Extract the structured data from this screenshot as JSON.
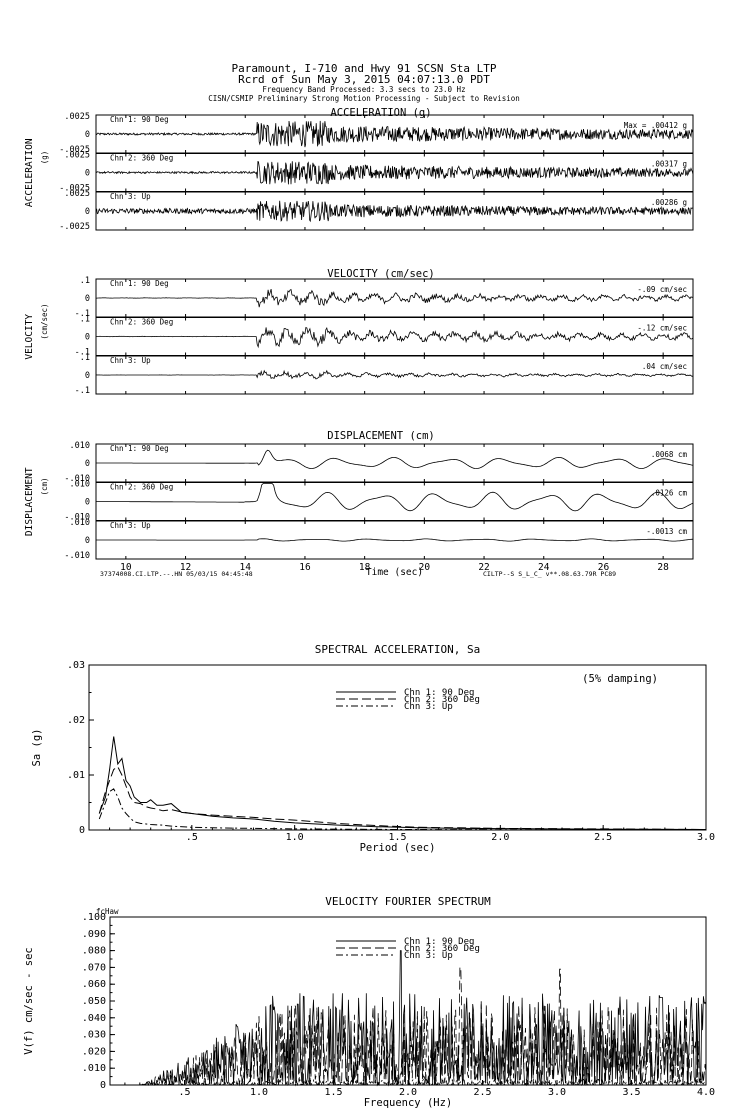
{
  "header": {
    "line1": "Paramount, I-710 and Hwy 91    SCSN Sta LTP",
    "line2": "Rcrd of Sun May  3, 2015 04:07:13.0 PDT",
    "line3": "Frequency Band Processed: 3.3 secs to 23.0 Hz",
    "line4": "CISN/CSMIP Preliminary Strong Motion Processing - Subject to Revision"
  },
  "chart_data": [
    {
      "type": "line",
      "id": "time-histories",
      "xlabel": "Time (sec)",
      "xlim": [
        9,
        29
      ],
      "xticks": [
        "10",
        "12",
        "14",
        "16",
        "18",
        "20",
        "22",
        "24",
        "26",
        "28"
      ],
      "footer_left": "37374008.CI.LTP.--.HN 05/03/15 04:45:48",
      "footer_right": "CILTP--S  S_L_C_  v**.08.63.79R PC89",
      "groups": [
        {
          "title": "ACCELERATION (g)",
          "side_label": "ACCELERATION",
          "unit_label": "(g)",
          "ylim": [
            -0.0025,
            0.0025
          ],
          "yticks": [
            ".0025",
            "0",
            "-.0025"
          ],
          "channels": [
            {
              "name": "Chn 1: 90 Deg",
              "max": "Max =   .00412   g",
              "amp": 0.78
            },
            {
              "name": "Chn 2: 360 Deg",
              "max": ".00317   g",
              "amp": 0.7
            },
            {
              "name": "Chn 3: Up",
              "max": ".00286   g",
              "amp": 0.6
            }
          ]
        },
        {
          "title": "VELOCITY (cm/sec)",
          "side_label": "VELOCITY",
          "unit_label": "(cm/sec)",
          "ylim": [
            -0.1,
            0.1
          ],
          "yticks": [
            ".1",
            "0",
            "-.1"
          ],
          "channels": [
            {
              "name": "Chn 1: 90 Deg",
              "max": "-.09   cm/sec",
              "amp": 0.55
            },
            {
              "name": "Chn 2: 360 Deg",
              "max": "-.12   cm/sec",
              "amp": 0.65
            },
            {
              "name": "Chn 3: Up",
              "max": ".04   cm/sec",
              "amp": 0.25
            }
          ]
        },
        {
          "title": "DISPLACEMENT (cm)",
          "side_label": "DISPLACEMENT",
          "unit_label": "(cm)",
          "ylim": [
            -0.01,
            0.01
          ],
          "yticks": [
            ".010",
            "0",
            "-.010"
          ],
          "channels": [
            {
              "name": "Chn 1: 90 Deg",
              "max": ".0068   cm",
              "amp": 0.6
            },
            {
              "name": "Chn 2: 360 Deg",
              "max": ".0126   cm",
              "amp": 1.0
            },
            {
              "name": "Chn 3: Up",
              "max": "-.0013   cm",
              "amp": 0.12
            }
          ]
        }
      ]
    },
    {
      "type": "line",
      "id": "spectral-acceleration",
      "title": "SPECTRAL ACCELERATION, Sa",
      "xlabel": "Period (sec)",
      "ylabel": "Sa (g)",
      "annotation": "(5% damping)",
      "xlim": [
        0,
        3.0
      ],
      "ylim": [
        0,
        0.03
      ],
      "xticks": [
        {
          "v": 0.5,
          "l": ".5"
        },
        {
          "v": 1.0,
          "l": "1.0"
        },
        {
          "v": 1.5,
          "l": "1.5"
        },
        {
          "v": 2.0,
          "l": "2.0"
        },
        {
          "v": 2.5,
          "l": "2.5"
        },
        {
          "v": 3.0,
          "l": "3.0"
        }
      ],
      "yticks": [
        {
          "v": 0,
          "l": "0"
        },
        {
          "v": 0.01,
          "l": ".01"
        },
        {
          "v": 0.02,
          "l": ".02"
        },
        {
          "v": 0.03,
          "l": ".03"
        }
      ],
      "series": [
        {
          "name": "Chn 1: 90 Deg",
          "dash": "",
          "x": [
            0.05,
            0.08,
            0.1,
            0.12,
            0.14,
            0.16,
            0.18,
            0.2,
            0.22,
            0.25,
            0.28,
            0.3,
            0.33,
            0.36,
            0.4,
            0.45,
            0.5,
            0.6,
            0.7,
            0.8,
            0.9,
            1.0,
            1.2,
            1.4,
            1.6,
            1.8,
            2.0,
            2.5,
            3.0
          ],
          "y": [
            0.003,
            0.006,
            0.011,
            0.017,
            0.012,
            0.013,
            0.009,
            0.008,
            0.006,
            0.005,
            0.005,
            0.0055,
            0.0045,
            0.0045,
            0.0048,
            0.0032,
            0.003,
            0.0025,
            0.0022,
            0.002,
            0.0016,
            0.0013,
            0.0009,
            0.0006,
            0.0004,
            0.0003,
            0.00025,
            0.00015,
            0.0001
          ]
        },
        {
          "name": "Chn 2: 360 Deg",
          "dash": "9,4",
          "x": [
            0.05,
            0.08,
            0.1,
            0.12,
            0.14,
            0.16,
            0.18,
            0.2,
            0.22,
            0.25,
            0.28,
            0.3,
            0.33,
            0.36,
            0.4,
            0.45,
            0.5,
            0.6,
            0.7,
            0.8,
            0.9,
            1.0,
            1.2,
            1.4,
            1.6,
            1.8,
            2.0,
            2.5,
            3.0
          ],
          "y": [
            0.003,
            0.007,
            0.009,
            0.011,
            0.0115,
            0.01,
            0.008,
            0.006,
            0.005,
            0.0048,
            0.0042,
            0.004,
            0.0038,
            0.0035,
            0.0037,
            0.0033,
            0.003,
            0.0027,
            0.0025,
            0.0023,
            0.002,
            0.0018,
            0.0012,
            0.0008,
            0.0005,
            0.0004,
            0.0003,
            0.0002,
            0.0001
          ]
        },
        {
          "name": "Chn 3: Up",
          "dash": "7,3,2,3",
          "x": [
            0.05,
            0.08,
            0.1,
            0.12,
            0.14,
            0.16,
            0.18,
            0.2,
            0.22,
            0.25,
            0.3,
            0.35,
            0.4,
            0.5,
            0.6,
            0.8,
            1.0,
            1.5,
            2.0,
            3.0
          ],
          "y": [
            0.002,
            0.005,
            0.007,
            0.0075,
            0.006,
            0.004,
            0.003,
            0.0022,
            0.0015,
            0.0012,
            0.001,
            0.0009,
            0.0007,
            0.0005,
            0.0004,
            0.0003,
            0.0002,
            0.0001,
            5e-05,
            3e-05
          ]
        }
      ]
    },
    {
      "type": "line",
      "id": "velocity-fourier-spectrum",
      "title": "VELOCITY FOURIER SPECTRUM",
      "xlabel": "Frequency (Hz)",
      "ylabel": "V(f)   cm/sec - sec",
      "corner_label": "fcHaw",
      "xlim": [
        0,
        4.0
      ],
      "ylim": [
        0,
        0.1
      ],
      "xticks": [
        {
          "v": 0.5,
          "l": ".5"
        },
        {
          "v": 1.0,
          "l": "1.0"
        },
        {
          "v": 1.5,
          "l": "1.5"
        },
        {
          "v": 2.0,
          "l": "2.0"
        },
        {
          "v": 2.5,
          "l": "2.5"
        },
        {
          "v": 3.0,
          "l": "3.0"
        },
        {
          "v": 3.5,
          "l": "3.5"
        },
        {
          "v": 4.0,
          "l": "4.0"
        }
      ],
      "yticks": [
        {
          "v": 0,
          "l": "0"
        },
        {
          "v": 0.01,
          "l": ".010"
        },
        {
          "v": 0.02,
          "l": ".020"
        },
        {
          "v": 0.03,
          "l": ".030"
        },
        {
          "v": 0.04,
          "l": ".040"
        },
        {
          "v": 0.05,
          "l": ".050"
        },
        {
          "v": 0.06,
          "l": ".060"
        },
        {
          "v": 0.07,
          "l": ".070"
        },
        {
          "v": 0.08,
          "l": ".080"
        },
        {
          "v": 0.09,
          "l": ".090"
        },
        {
          "v": 0.1,
          "l": ".100"
        }
      ],
      "series": [
        {
          "name": "Chn 1: 90 Deg",
          "dash": "",
          "peak": 0.08,
          "peak_f": 1.95
        },
        {
          "name": "Chn 2: 360 Deg",
          "dash": "9,4",
          "peak": 0.07,
          "peak_f": 2.35
        },
        {
          "name": "Chn 3: Up",
          "dash": "7,3,2,3",
          "peak": 0.02,
          "peak_f": 1.2
        }
      ]
    }
  ]
}
